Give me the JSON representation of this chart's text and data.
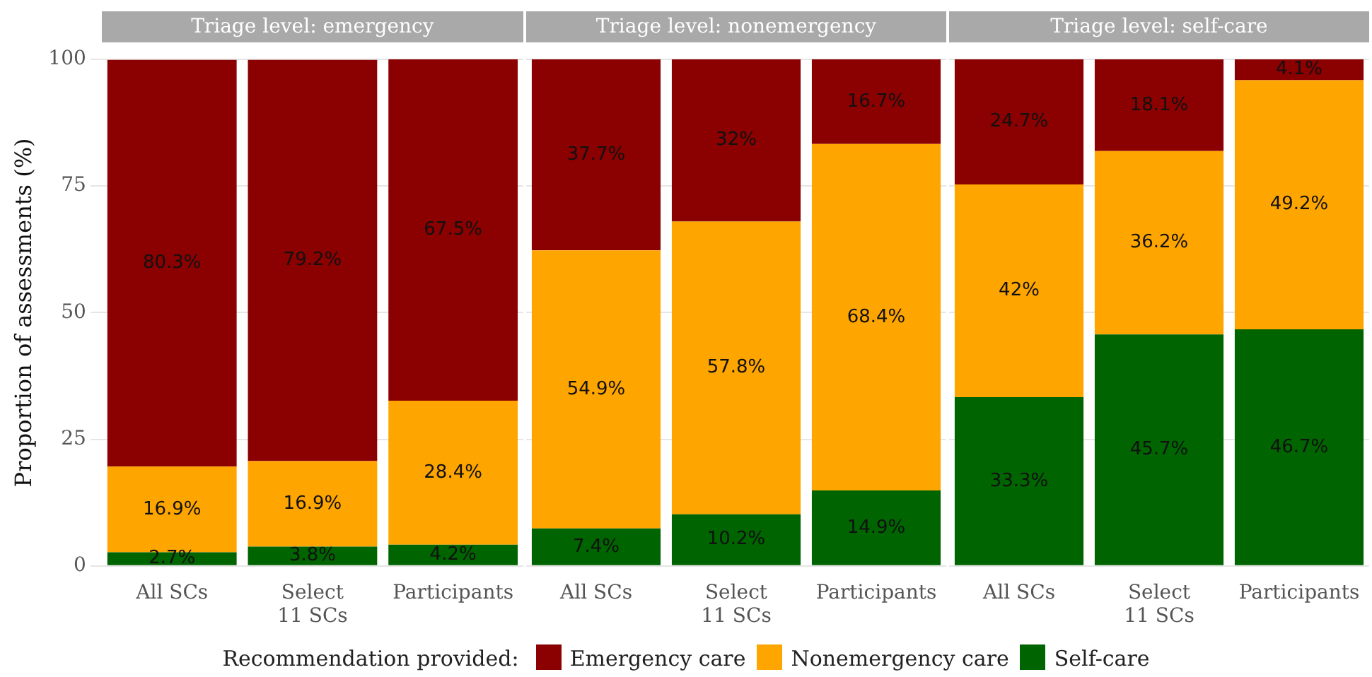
{
  "chart_data": [
    {
      "type": "bar",
      "title": "Triage level: emergency",
      "ylabel": "Proportion of assessments (%)",
      "categories": [
        "All SCs",
        "Select\n11 SCs",
        "Participants"
      ],
      "stacked": true,
      "ylim": [
        0,
        100
      ],
      "yticks": [
        0,
        25,
        50,
        75,
        100
      ],
      "grid": "y",
      "legend": "bottom",
      "legend_title": "Recommendation provided:",
      "series": [
        {
          "name": "Self-care",
          "color": "#006400",
          "values": [
            2.7,
            3.8,
            4.2
          ],
          "value_labels": [
            "2.7%",
            "3.8%",
            "4.2%"
          ]
        },
        {
          "name": "Nonemergency care",
          "color": "#ffa500",
          "values": [
            16.9,
            16.9,
            28.4
          ],
          "value_labels": [
            "16.9%",
            "16.9%",
            "28.4%"
          ]
        },
        {
          "name": "Emergency care",
          "color": "#8b0000",
          "values": [
            80.3,
            79.2,
            67.5
          ],
          "value_labels": [
            "80.3%",
            "79.2%",
            "67.5%"
          ]
        }
      ]
    },
    {
      "type": "bar",
      "title": "Triage level: nonemergency",
      "categories": [
        "All SCs",
        "Select\n11 SCs",
        "Participants"
      ],
      "stacked": true,
      "ylim": [
        0,
        100
      ],
      "yticks": [
        0,
        25,
        50,
        75,
        100
      ],
      "grid": "y",
      "tick_labels": "x",
      "series": [
        {
          "color": "#006400",
          "values": [
            7.4,
            10.2,
            14.9
          ],
          "value_labels": [
            "7.4%",
            "10.2%",
            "14.9%"
          ]
        },
        {
          "color": "#ffa500",
          "values": [
            54.9,
            57.8,
            68.4
          ],
          "value_labels": [
            "54.9%",
            "57.8%",
            "68.4%"
          ]
        },
        {
          "color": "#8b0000",
          "values": [
            37.7,
            32,
            16.7
          ],
          "value_labels": [
            "37.7%",
            "32%",
            "16.7%"
          ]
        }
      ]
    },
    {
      "type": "bar",
      "title": "Triage level: self-care",
      "categories": [
        "All SCs",
        "Select\n11 SCs",
        "Participants"
      ],
      "stacked": true,
      "ylim": [
        0,
        100
      ],
      "yticks": [
        0,
        25,
        50,
        75,
        100
      ],
      "grid": "y",
      "tick_labels": "x",
      "series": [
        {
          "color": "#006400",
          "values": [
            33.3,
            45.7,
            46.7
          ],
          "value_labels": [
            "33.3%",
            "45.7%",
            "46.7%"
          ]
        },
        {
          "color": "#ffa500",
          "values": [
            42,
            36.2,
            49.2
          ],
          "value_labels": [
            "42%",
            "36.2%",
            "49.2%"
          ]
        },
        {
          "color": "#8b0000",
          "values": [
            24.7,
            18.1,
            4.1
          ],
          "value_labels": [
            "24.7%",
            "18.1%",
            "4.1%"
          ]
        }
      ]
    }
  ]
}
